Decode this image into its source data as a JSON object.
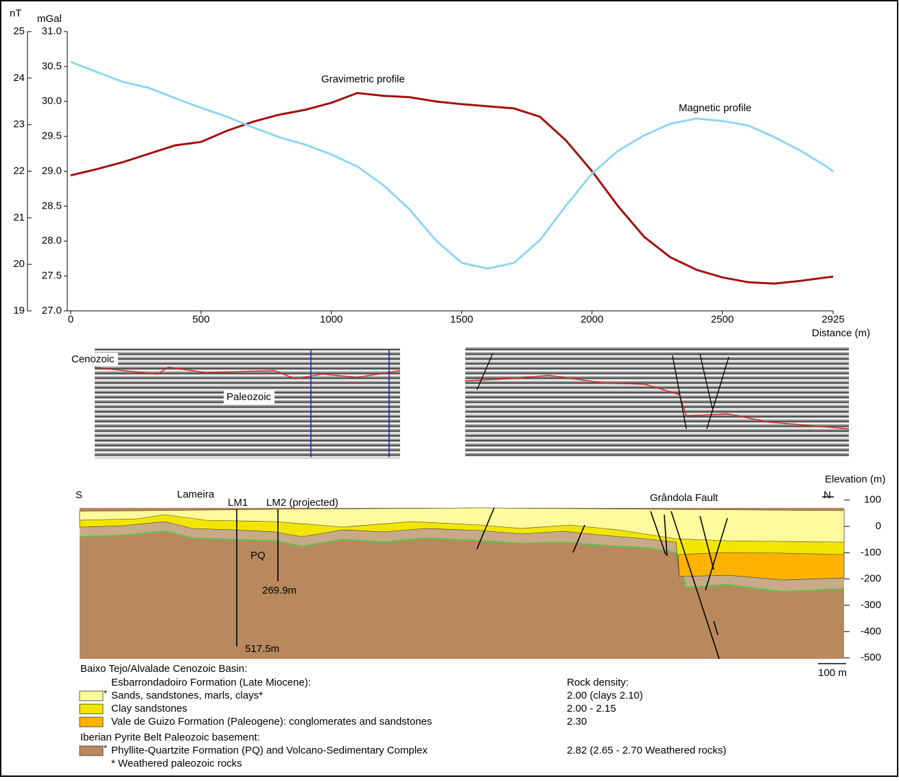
{
  "chart_data": {
    "type": "line",
    "x": [
      0,
      100,
      200,
      300,
      400,
      500,
      600,
      700,
      800,
      900,
      1000,
      1100,
      1200,
      1300,
      1400,
      1500,
      1600,
      1700,
      1800,
      1900,
      2000,
      2100,
      2200,
      2300,
      2400,
      2500,
      2600,
      2700,
      2800,
      2900,
      2925
    ],
    "xlim": [
      0,
      2925
    ],
    "xticks": [
      0,
      500,
      1000,
      1500,
      2000,
      2500,
      2925
    ],
    "xlabel": "Distance (m)",
    "ylabel": "mGal",
    "ylim": [
      27,
      31
    ],
    "yticks": [
      {
        "value": 27,
        "label": "27.0"
      },
      {
        "value": 27.5,
        "label": "27.5"
      },
      {
        "value": 28,
        "label": "28.0"
      },
      {
        "value": 28.5,
        "label": "28.5"
      },
      {
        "value": 29,
        "label": "29.0"
      },
      {
        "value": 29.5,
        "label": "29.5"
      },
      {
        "value": 30,
        "label": "30.0"
      },
      {
        "value": 30.5,
        "label": "30.5"
      },
      {
        "value": 31,
        "label": "31.0"
      }
    ],
    "y2label": "nT",
    "y2lim": [
      19,
      25
    ],
    "y2ticks": [
      19,
      20,
      21,
      22,
      23,
      24,
      25
    ],
    "series": [
      {
        "name": "Gravimetric profile",
        "color": "#a30f0f",
        "values": [
          28.94,
          29.03,
          29.13,
          29.25,
          29.37,
          29.42,
          29.58,
          29.71,
          29.81,
          29.88,
          29.98,
          30.12,
          30.08,
          30.06,
          30.0,
          29.96,
          29.93,
          29.9,
          29.78,
          29.44,
          29.0,
          28.5,
          28.06,
          27.77,
          27.59,
          27.48,
          27.41,
          27.39,
          27.43,
          27.48,
          27.49
        ]
      },
      {
        "name": "Magnetic profile",
        "color": "#8fd6f2",
        "axis": "y2",
        "values": [
          24.35,
          24.13,
          23.92,
          23.79,
          23.57,
          23.36,
          23.17,
          22.94,
          22.73,
          22.57,
          22.36,
          22.1,
          21.7,
          21.18,
          20.52,
          20.03,
          19.91,
          20.03,
          20.52,
          21.26,
          21.95,
          22.44,
          22.77,
          23.02,
          23.13,
          23.08,
          22.98,
          22.73,
          22.44,
          22.1,
          21.99
        ]
      }
    ]
  },
  "seismic": {
    "upper_label": "Cenozoic",
    "lower_label": "Paleozoic"
  },
  "section": {
    "south": "S",
    "north": "N",
    "site": "Lameira",
    "well1": "LM1",
    "well2": "LM2 (projected)",
    "fault": "Grândola Fault",
    "unit": "PQ",
    "depth2": "269.9m",
    "depth1": "517.5m",
    "elevation_label": "Elevation (m)",
    "elevation_ticks": [
      100,
      0,
      -100,
      -200,
      -300,
      -400,
      -500
    ],
    "scale": "100 m"
  },
  "legend": {
    "basin": "Baixo Tejo/Alvalade Cenozoic Basin:",
    "formation": "Esbarrondadoiro Formation (Late Miocene):",
    "density_title": "Rock density:",
    "basement": "Iberian Pyrite Belt Paleozoic basement:",
    "footnote": "* Weathered paleozoic rocks",
    "items": [
      {
        "mark": "*",
        "label": "Sands, sandstones, marls, clays*",
        "color": "#fffb9c",
        "density": "2.00 (clays 2.10)"
      },
      {
        "label": "Clay sandstones",
        "color": "#f2e600",
        "density": "2.00 - 2.15"
      },
      {
        "label": "Vale de Guizo Formation (Paleogene): conglomerates and sandstones",
        "color": "#ffb300",
        "density": "2.30"
      },
      {
        "mark": "*",
        "label": "Phyllite-Quartzite Formation (PQ) and Volcano-Sedimentary Complex",
        "color": "#b8895e",
        "density": "2.82 (2.65 - 2.70 Weathered rocks)"
      }
    ]
  }
}
